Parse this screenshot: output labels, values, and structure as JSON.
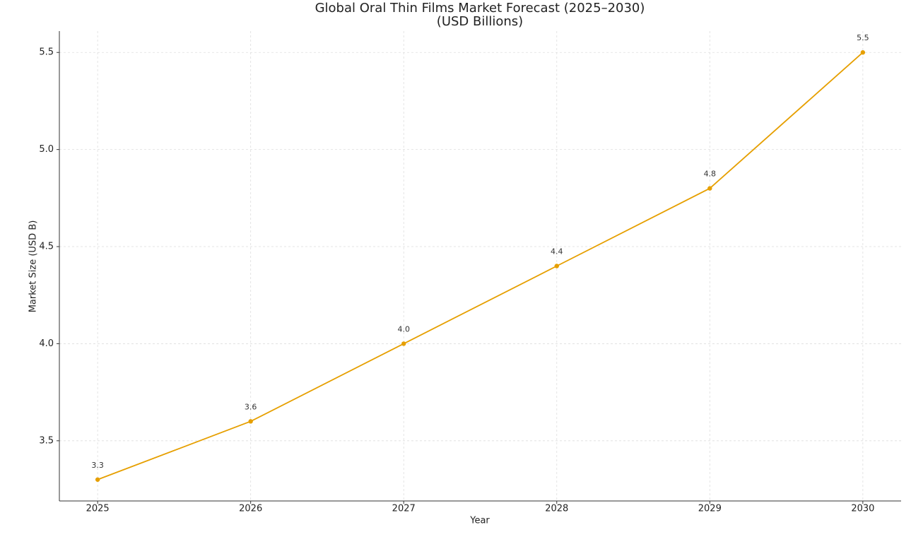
{
  "chart_data": {
    "type": "line",
    "title": "Global Oral Thin Films Market Forecast (2025–2030)",
    "subtitle": "(USD Billions)",
    "x_label": "Year",
    "y_label": "Market Size (USD B)",
    "x": [
      2025,
      2026,
      2027,
      2028,
      2029,
      2030
    ],
    "series": [
      {
        "name": "Market Size",
        "color": "#e69f00",
        "values": [
          3.3,
          3.6,
          4.0,
          4.4,
          4.8,
          5.5
        ],
        "value_labels": [
          "3.3",
          "3.6",
          "4.0",
          "4.4",
          "4.8",
          "5.5"
        ]
      }
    ],
    "xlim": [
      2024.75,
      2030.25
    ],
    "xticks": [
      2025,
      2026,
      2027,
      2028,
      2029,
      2030
    ],
    "ylim": [
      3.19,
      5.61
    ],
    "yticks": [
      3.5,
      {
        "value": 4,
        "label": "4.0"
      },
      4.5,
      {
        "value": 5,
        "label": "5.0"
      },
      5.5
    ],
    "grid": true
  }
}
